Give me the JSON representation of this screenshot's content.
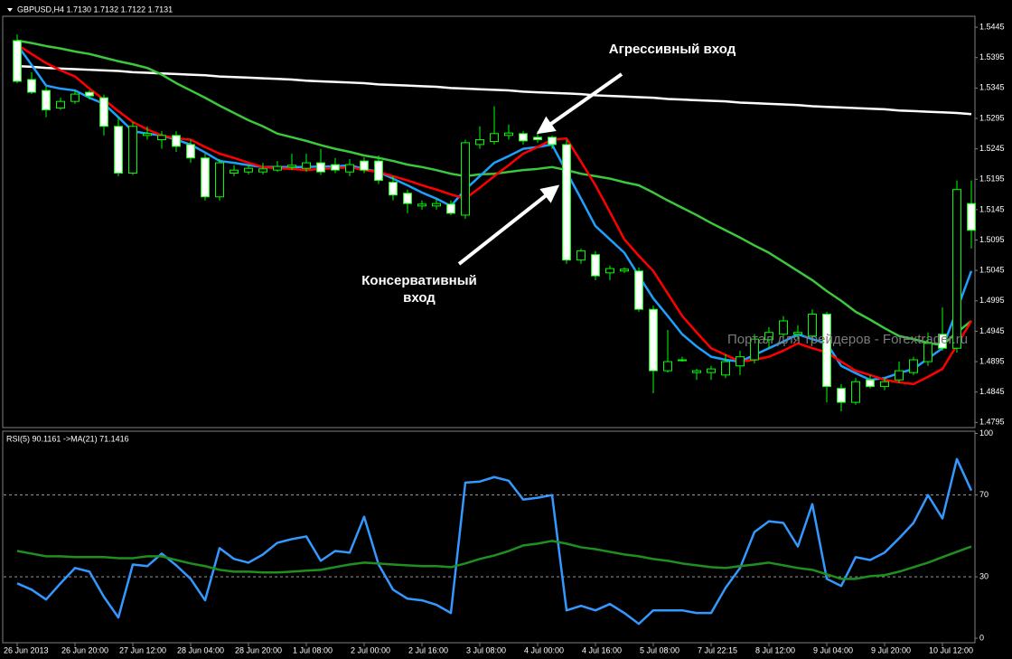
{
  "chart_data": [
    {
      "type": "candlestick",
      "title": "GBPUSD,H4  1.7130 1.7132 1.7122 1.7131",
      "watermark": "Портал для трейдеров - Forextrader.ru",
      "annotations": [
        "Агрессивный вход",
        "Консервативный вход"
      ],
      "categories": [
        "26 Jun 2013",
        null,
        null,
        null,
        "26 Jun 20:00",
        null,
        null,
        null,
        "27 Jun 12:00",
        null,
        null,
        null,
        "28 Jun 04:00",
        null,
        null,
        null,
        "28 Jun 20:00",
        null,
        null,
        null,
        "1 Jul 08:00",
        null,
        null,
        null,
        "2 Jul 00:00",
        null,
        null,
        null,
        "2 Jul 16:00",
        null,
        null,
        null,
        "3 Jul 08:00",
        null,
        null,
        null,
        "4 Jul 00:00",
        null,
        null,
        null,
        "4 Jul 16:00",
        null,
        null,
        null,
        "5 Jul 08:00",
        null,
        null,
        null,
        "7 Jul 22:15",
        null,
        null,
        null,
        "8 Jul 12:00",
        null,
        null,
        null,
        "9 Jul 04:00",
        null,
        null,
        null,
        "9 Jul 20:00",
        null,
        null,
        null,
        "10 Jul 12:00",
        null,
        null
      ],
      "open": [
        1.5423,
        1.5359,
        1.5341,
        1.5312,
        1.5323,
        1.5338,
        1.5329,
        1.5282,
        1.5205,
        1.5267,
        1.526,
        1.5267,
        1.5252,
        1.523,
        1.5166,
        1.5205,
        1.5207,
        1.5207,
        1.521,
        1.5215,
        1.5213,
        1.5222,
        1.5219,
        1.5207,
        1.5225,
        1.5225,
        1.519,
        1.5172,
        1.5151,
        1.5151,
        1.5154,
        1.5136,
        1.5252,
        1.5257,
        1.5267,
        1.527,
        1.5264,
        1.5264,
        1.5252,
        1.5062,
        1.5071,
        1.5041,
        1.5044,
        1.5044,
        1.4981,
        1.488,
        1.4898,
        1.4877,
        1.4877,
        1.4873,
        1.4888,
        1.4898,
        1.4931,
        1.494,
        1.494,
        1.4937,
        1.4973,
        1.4851,
        1.4828,
        1.4865,
        1.4854,
        1.4865,
        1.4877,
        1.4895,
        1.494,
        1.4917,
        1.5155
      ],
      "high": [
        1.5433,
        1.5371,
        1.5347,
        1.5329,
        1.5341,
        1.5341,
        1.5334,
        1.5297,
        1.5289,
        1.5282,
        1.5274,
        1.5274,
        1.526,
        1.5237,
        1.5228,
        1.5218,
        1.5219,
        1.5222,
        1.5225,
        1.5237,
        1.5237,
        1.5245,
        1.523,
        1.5228,
        1.5231,
        1.5234,
        1.52,
        1.5178,
        1.516,
        1.5163,
        1.516,
        1.526,
        1.5282,
        1.5315,
        1.5285,
        1.5274,
        1.5274,
        1.5267,
        1.526,
        1.5081,
        1.5077,
        1.5053,
        1.505,
        1.505,
        1.4987,
        1.4947,
        1.4903,
        1.4883,
        1.4888,
        1.4907,
        1.4913,
        1.494,
        1.4952,
        1.497,
        1.4955,
        1.4981,
        1.4977,
        1.4858,
        1.4868,
        1.4873,
        1.4868,
        1.4895,
        1.4903,
        1.4943,
        1.4984,
        1.5193,
        1.5193
      ],
      "low": [
        1.5353,
        1.5335,
        1.5297,
        1.5309,
        1.5319,
        1.5326,
        1.5267,
        1.52,
        1.5202,
        1.526,
        1.5245,
        1.524,
        1.5222,
        1.516,
        1.516,
        1.52,
        1.5203,
        1.5203,
        1.5207,
        1.521,
        1.5207,
        1.5202,
        1.5205,
        1.52,
        1.5205,
        1.5187,
        1.516,
        1.5139,
        1.5145,
        1.5145,
        1.5136,
        1.513,
        1.5245,
        1.5252,
        1.526,
        1.5252,
        1.5255,
        1.5245,
        1.5056,
        1.5056,
        1.5029,
        1.5029,
        1.5041,
        1.4977,
        1.4843,
        1.4877,
        1.4895,
        1.4865,
        1.4865,
        1.4868,
        1.4873,
        1.4892,
        1.4917,
        1.4932,
        1.4932,
        1.4925,
        1.4828,
        1.4813,
        1.4824,
        1.4851,
        1.4848,
        1.486,
        1.4873,
        1.4888,
        1.4913,
        1.491,
        1.5081
      ],
      "close": [
        1.5356,
        1.5338,
        1.5309,
        1.5323,
        1.5335,
        1.5332,
        1.5282,
        1.5205,
        1.5282,
        1.527,
        1.5267,
        1.5249,
        1.523,
        1.5166,
        1.5222,
        1.521,
        1.5213,
        1.5212,
        1.5216,
        1.5218,
        1.5222,
        1.5207,
        1.521,
        1.5219,
        1.521,
        1.5193,
        1.5169,
        1.5155,
        1.5154,
        1.5155,
        1.5139,
        1.5255,
        1.526,
        1.527,
        1.5271,
        1.5258,
        1.526,
        1.5252,
        1.5062,
        1.5077,
        1.5036,
        1.5048,
        1.5047,
        1.4981,
        1.488,
        1.4895,
        1.4898,
        1.488,
        1.4883,
        1.4895,
        1.4903,
        1.4932,
        1.4943,
        1.4962,
        1.4943,
        1.4973,
        1.4854,
        1.4828,
        1.4862,
        1.4854,
        1.4862,
        1.488,
        1.4898,
        1.4925,
        1.4917,
        1.5178,
        1.5111
      ],
      "up_color": "#000000",
      "down_color": "#ffffff",
      "wick_color": "#00ff00",
      "series": [
        {
          "color": "#ffffff",
          "values": [
            1.5381,
            1.538,
            1.5378,
            1.5377,
            1.5376,
            1.5375,
            1.5374,
            1.5373,
            1.5371,
            1.537,
            1.5369,
            1.5368,
            1.5367,
            1.5366,
            1.5364,
            1.5363,
            1.5362,
            1.5361,
            1.536,
            1.5359,
            1.5357,
            1.5356,
            1.5355,
            1.5354,
            1.5353,
            1.5351,
            1.535,
            1.5349,
            1.5348,
            1.5347,
            1.5345,
            1.5344,
            1.5343,
            1.5342,
            1.5341,
            1.5339,
            1.5338,
            1.5337,
            1.5336,
            1.5335,
            1.5333,
            1.5332,
            1.5331,
            1.533,
            1.5329,
            1.5327,
            1.5326,
            1.5325,
            1.5324,
            1.5323,
            1.5321,
            1.532,
            1.5319,
            1.5318,
            1.5317,
            1.5315,
            1.5314,
            1.5313,
            1.5312,
            1.5311,
            1.531,
            1.5308,
            1.5307,
            1.5306,
            1.5305,
            1.5304,
            1.5302
          ]
        },
        {
          "color": "#3cc83c",
          "values": [
            1.5423,
            1.5419,
            1.5414,
            1.541,
            1.5405,
            1.5401,
            1.5395,
            1.5389,
            1.5384,
            1.5378,
            1.5367,
            1.5353,
            1.5341,
            1.5329,
            1.5316,
            1.5304,
            1.5292,
            1.5282,
            1.527,
            1.5264,
            1.5258,
            1.5251,
            1.5245,
            1.524,
            1.5234,
            1.523,
            1.5225,
            1.5219,
            1.5215,
            1.521,
            1.5204,
            1.52,
            1.5203,
            1.5204,
            1.5207,
            1.521,
            1.5212,
            1.5215,
            1.521,
            1.5204,
            1.52,
            1.5196,
            1.519,
            1.5185,
            1.5173,
            1.516,
            1.5148,
            1.5136,
            1.5123,
            1.5111,
            1.5099,
            1.5086,
            1.5074,
            1.5059,
            1.5044,
            1.5029,
            1.5011,
            1.4995,
            1.4977,
            1.4964,
            1.495,
            1.4937,
            1.4932,
            1.4926,
            1.4922,
            1.4943,
            1.4962
          ]
        },
        {
          "color": "#1ea0ff",
          "values": [
            1.5416,
            1.5383,
            1.5349,
            1.5344,
            1.5341,
            1.5329,
            1.5319,
            1.5297,
            1.5274,
            1.527,
            1.5267,
            1.526,
            1.5252,
            1.5239,
            1.5225,
            1.5222,
            1.5218,
            1.5215,
            1.5215,
            1.5215,
            1.5215,
            1.5216,
            1.5216,
            1.5218,
            1.5212,
            1.5207,
            1.5196,
            1.5185,
            1.5173,
            1.5163,
            1.5151,
            1.5178,
            1.52,
            1.5222,
            1.5233,
            1.5245,
            1.5248,
            1.5252,
            1.5207,
            1.5163,
            1.5118,
            1.5096,
            1.5074,
            1.5036,
            1.4999,
            1.497,
            1.494,
            1.492,
            1.4903,
            1.4898,
            1.4895,
            1.4906,
            1.4917,
            1.4928,
            1.494,
            1.4932,
            1.4925,
            1.4888,
            1.4876,
            1.4865,
            1.4868,
            1.4876,
            1.4883,
            1.49,
            1.4917,
            1.498,
            1.5044
          ]
        },
        {
          "color": "#ff0000",
          "values": [
            1.5416,
            1.5401,
            1.5386,
            1.5374,
            1.5364,
            1.5344,
            1.5326,
            1.5307,
            1.5289,
            1.5277,
            1.5267,
            1.5262,
            1.526,
            1.5248,
            1.5237,
            1.523,
            1.5222,
            1.5215,
            1.5213,
            1.5212,
            1.521,
            1.5212,
            1.5213,
            1.5215,
            1.521,
            1.5207,
            1.52,
            1.5193,
            1.5185,
            1.5178,
            1.517,
            1.5163,
            1.5181,
            1.52,
            1.5218,
            1.5237,
            1.5248,
            1.526,
            1.5262,
            1.5224,
            1.5185,
            1.5141,
            1.5096,
            1.5069,
            1.5044,
            1.5007,
            1.497,
            1.4943,
            1.4917,
            1.4906,
            1.4895,
            1.4898,
            1.4903,
            1.4913,
            1.4925,
            1.4917,
            1.491,
            1.4895,
            1.488,
            1.4873,
            1.4865,
            1.4861,
            1.4858,
            1.487,
            1.4883,
            1.4922,
            1.4962
          ]
        }
      ],
      "ylim": [
        1.4788,
        1.5463
      ],
      "yticks": [
        1.5445,
        1.5395,
        1.5345,
        1.5295,
        1.5245,
        1.5195,
        1.5145,
        1.5095,
        1.5045,
        1.4995,
        1.4945,
        1.4895,
        1.4845,
        1.4795
      ]
    },
    {
      "type": "line",
      "title": "RSI(5) 90.1161  ->MA(21) 71.1416",
      "series": [
        {
          "color": "#3399ff",
          "values": [
            26.8,
            23.7,
            18.9,
            26.8,
            34.3,
            32.5,
            20.2,
            10.1,
            36.0,
            35.2,
            41.3,
            35.6,
            29.0,
            18.5,
            44.0,
            38.7,
            36.9,
            40.9,
            46.6,
            48.4,
            49.7,
            37.8,
            42.6,
            41.8,
            59.3,
            36.0,
            23.7,
            19.3,
            18.5,
            16.3,
            12.3,
            76.0,
            76.5,
            78.7,
            76.9,
            67.7,
            68.6,
            69.9,
            13.6,
            15.8,
            13.6,
            16.7,
            12.3,
            7.0,
            13.6,
            13.6,
            13.6,
            12.3,
            12.3,
            24.6,
            34.3,
            51.9,
            57.1,
            56.3,
            44.8,
            65.5,
            29.0,
            25.5,
            39.6,
            38.2,
            41.8,
            48.8,
            56.3,
            69.9,
            58.5,
            87.5,
            72.1
          ]
        },
        {
          "color": "#1f8f1f",
          "values": [
            42.6,
            41.3,
            40.0,
            40.0,
            39.6,
            39.6,
            39.6,
            39.1,
            39.1,
            40.0,
            40.0,
            38.2,
            36.5,
            35.2,
            33.4,
            32.5,
            32.5,
            32.1,
            32.1,
            32.5,
            33.0,
            33.4,
            34.7,
            36.0,
            36.9,
            36.5,
            36.0,
            35.6,
            35.2,
            35.2,
            34.7,
            36.5,
            38.7,
            40.4,
            42.6,
            45.3,
            46.2,
            47.5,
            46.2,
            44.4,
            43.5,
            42.2,
            40.9,
            40.0,
            38.7,
            37.8,
            36.5,
            35.6,
            34.7,
            34.3,
            35.2,
            36.0,
            36.9,
            35.6,
            34.3,
            33.4,
            31.2,
            29.0,
            29.0,
            30.3,
            30.8,
            32.5,
            34.7,
            36.9,
            39.6,
            42.2,
            44.8
          ]
        }
      ],
      "levels": [
        30,
        70
      ],
      "ylim": [
        0,
        100
      ],
      "yticks": [
        100,
        70,
        30,
        0
      ]
    }
  ]
}
